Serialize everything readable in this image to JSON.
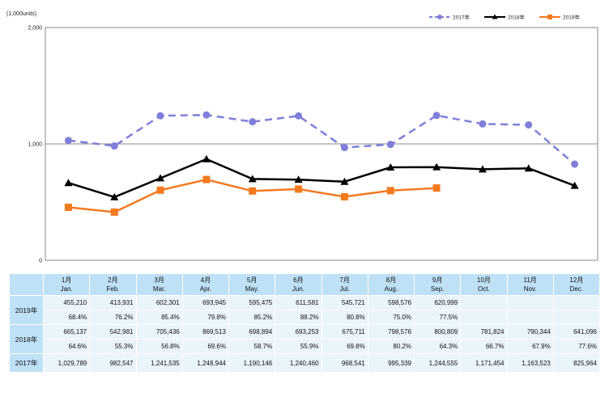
{
  "chart_data": {
    "type": "line",
    "unit_label": "(1,000units)",
    "ylim": [
      0,
      2000
    ],
    "yticks": [
      "0",
      "1,000",
      "2,000"
    ],
    "categories": [
      "1月 Jan.",
      "2月 Feb.",
      "3月 Mar.",
      "4月 Apr.",
      "5月 May.",
      "6月 Jun.",
      "7月 Jul.",
      "8月 Aug.",
      "9月 Sep.",
      "10月 Oct.",
      "11月 Nov.",
      "12月 Dec."
    ],
    "legend_position": "top-right",
    "series": [
      {
        "name": "2017年",
        "color": "#7f7fd9",
        "style": "dashed",
        "marker": "circle",
        "values": [
          1029.789,
          982.547,
          1241.535,
          1248.944,
          1190.146,
          1240.46,
          968.541,
          995.339,
          1244.555,
          1171.454,
          1163.523,
          825.964
        ]
      },
      {
        "name": "2018年",
        "color": "#000000",
        "style": "solid",
        "marker": "triangle",
        "values": [
          665.137,
          542.981,
          705.436,
          869.513,
          698.894,
          693.253,
          675.711,
          798.576,
          800.809,
          781.824,
          790.344,
          641.096
        ]
      },
      {
        "name": "2019年",
        "color": "#f47a1f",
        "style": "solid",
        "marker": "square",
        "values": [
          455.21,
          413.931,
          602.301,
          693.945,
          595.475,
          611.581,
          545.721,
          598.576,
          620.999,
          null,
          null,
          null
        ]
      }
    ]
  },
  "table": {
    "months": [
      {
        "jp": "1月",
        "en": "Jan."
      },
      {
        "jp": "2月",
        "en": "Feb."
      },
      {
        "jp": "3月",
        "en": "Mar."
      },
      {
        "jp": "4月",
        "en": "Apr."
      },
      {
        "jp": "5月",
        "en": "May."
      },
      {
        "jp": "6月",
        "en": "Jun."
      },
      {
        "jp": "7月",
        "en": "Jul."
      },
      {
        "jp": "8月",
        "en": "Aug."
      },
      {
        "jp": "9月",
        "en": "Sep."
      },
      {
        "jp": "10月",
        "en": "Oct."
      },
      {
        "jp": "11月",
        "en": "Nov."
      },
      {
        "jp": "12月",
        "en": "Dec."
      }
    ],
    "rows": [
      {
        "label": "2019年",
        "values": [
          "455,210",
          "413,931",
          "602,301",
          "693,945",
          "595,475",
          "611,581",
          "545,721",
          "598,576",
          "620,999",
          "",
          "",
          ""
        ],
        "percents": [
          "68.4%",
          "76.2%",
          "85.4%",
          "79.8%",
          "85.2%",
          "88.2%",
          "80.8%",
          "75.0%",
          "77.5%",
          "",
          "",
          ""
        ]
      },
      {
        "label": "2018年",
        "values": [
          "665,137",
          "542,981",
          "705,436",
          "869,513",
          "698,894",
          "693,253",
          "675,711",
          "798,576",
          "800,809",
          "781,824",
          "790,344",
          "641,096"
        ],
        "percents": [
          "64.6%",
          "55.3%",
          "56.8%",
          "69.6%",
          "58.7%",
          "55.9%",
          "69.8%",
          "80.2%",
          "64.3%",
          "66.7%",
          "67.9%",
          "77.6%"
        ]
      },
      {
        "label": "2017年",
        "values": [
          "1,029,789",
          "982,547",
          "1,241,535",
          "1,248,944",
          "1,190,146",
          "1,240,460",
          "968,541",
          "995,339",
          "1,244,555",
          "1,171,454",
          "1,163,523",
          "825,964"
        ]
      }
    ]
  }
}
